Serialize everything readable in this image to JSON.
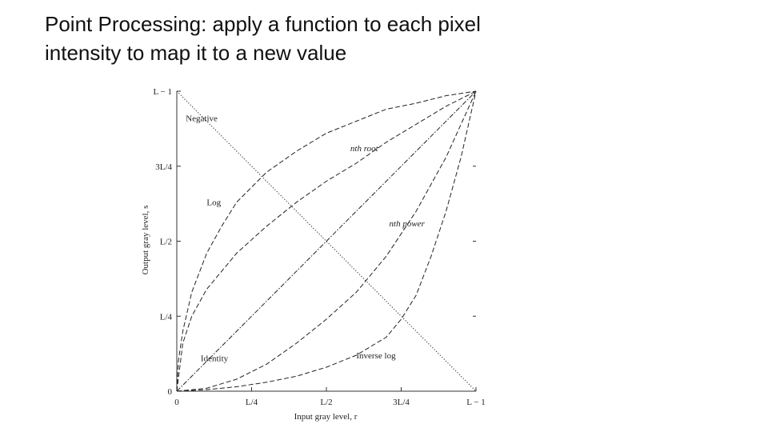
{
  "slide": {
    "title_line1": "Point Processing: apply a function to each pixel",
    "title_line2": "intensity to map it to a new value"
  },
  "chart_data": {
    "type": "line",
    "xlabel": "Input gray level, r",
    "ylabel": "Output gray level, s",
    "x_domain": [
      0,
      1
    ],
    "y_domain": [
      0,
      1
    ],
    "x_ticks": [
      {
        "value": 0,
        "label": "0"
      },
      {
        "value": 0.25,
        "label": "L/4"
      },
      {
        "value": 0.5,
        "label": "L/2"
      },
      {
        "value": 0.75,
        "label": "3L/4"
      },
      {
        "value": 1,
        "label": "L − 1"
      }
    ],
    "y_ticks": [
      {
        "value": 0,
        "label": "0"
      },
      {
        "value": 0.25,
        "label": "L/4"
      },
      {
        "value": 0.5,
        "label": "L/2"
      },
      {
        "value": 0.75,
        "label": "3L/4"
      },
      {
        "value": 1,
        "label": "L − 1"
      }
    ],
    "series": [
      {
        "name": "Negative",
        "style": "dotted",
        "label_at": [
          0.03,
          0.9
        ],
        "points": [
          [
            0,
            1
          ],
          [
            0.25,
            0.75
          ],
          [
            0.5,
            0.5
          ],
          [
            0.75,
            0.25
          ],
          [
            1,
            0
          ]
        ]
      },
      {
        "name": "Identity",
        "style": "dash-dot",
        "label_at": [
          0.08,
          0.1
        ],
        "points": [
          [
            0,
            0
          ],
          [
            0.25,
            0.25
          ],
          [
            0.5,
            0.5
          ],
          [
            0.75,
            0.75
          ],
          [
            1,
            1
          ]
        ]
      },
      {
        "name": "Log",
        "style": "dashed",
        "label_at": [
          0.1,
          0.62
        ],
        "points": [
          [
            0,
            0
          ],
          [
            0.005,
            0.1
          ],
          [
            0.02,
            0.2
          ],
          [
            0.05,
            0.33
          ],
          [
            0.1,
            0.46
          ],
          [
            0.15,
            0.55
          ],
          [
            0.2,
            0.63
          ],
          [
            0.25,
            0.68
          ],
          [
            0.3,
            0.73
          ],
          [
            0.4,
            0.8
          ],
          [
            0.5,
            0.86
          ],
          [
            0.6,
            0.9
          ],
          [
            0.7,
            0.94
          ],
          [
            0.8,
            0.96
          ],
          [
            0.9,
            0.985
          ],
          [
            1,
            1
          ]
        ]
      },
      {
        "name": "nth root",
        "style": "dashed",
        "label_at": [
          0.58,
          0.8
        ],
        "points": [
          [
            0,
            0
          ],
          [
            0.02,
            0.16
          ],
          [
            0.05,
            0.25
          ],
          [
            0.1,
            0.34
          ],
          [
            0.2,
            0.46
          ],
          [
            0.3,
            0.55
          ],
          [
            0.4,
            0.63
          ],
          [
            0.5,
            0.7
          ],
          [
            0.6,
            0.76
          ],
          [
            0.7,
            0.83
          ],
          [
            0.8,
            0.89
          ],
          [
            0.9,
            0.95
          ],
          [
            1,
            1
          ]
        ]
      },
      {
        "name": "nth power",
        "style": "dashed",
        "label_at": [
          0.71,
          0.55
        ],
        "points": [
          [
            0,
            0
          ],
          [
            0.1,
            0.01
          ],
          [
            0.2,
            0.04
          ],
          [
            0.3,
            0.09
          ],
          [
            0.4,
            0.16
          ],
          [
            0.5,
            0.24
          ],
          [
            0.6,
            0.33
          ],
          [
            0.7,
            0.45
          ],
          [
            0.8,
            0.6
          ],
          [
            0.9,
            0.78
          ],
          [
            1,
            1
          ]
        ]
      },
      {
        "name": "Inverse log",
        "style": "dashed",
        "label_at": [
          0.6,
          0.11
        ],
        "points": [
          [
            0,
            0
          ],
          [
            0.1,
            0.005
          ],
          [
            0.2,
            0.015
          ],
          [
            0.3,
            0.03
          ],
          [
            0.4,
            0.05
          ],
          [
            0.5,
            0.08
          ],
          [
            0.6,
            0.12
          ],
          [
            0.7,
            0.18
          ],
          [
            0.75,
            0.24
          ],
          [
            0.8,
            0.32
          ],
          [
            0.85,
            0.45
          ],
          [
            0.9,
            0.6
          ],
          [
            0.95,
            0.78
          ],
          [
            1,
            1
          ]
        ]
      }
    ]
  }
}
